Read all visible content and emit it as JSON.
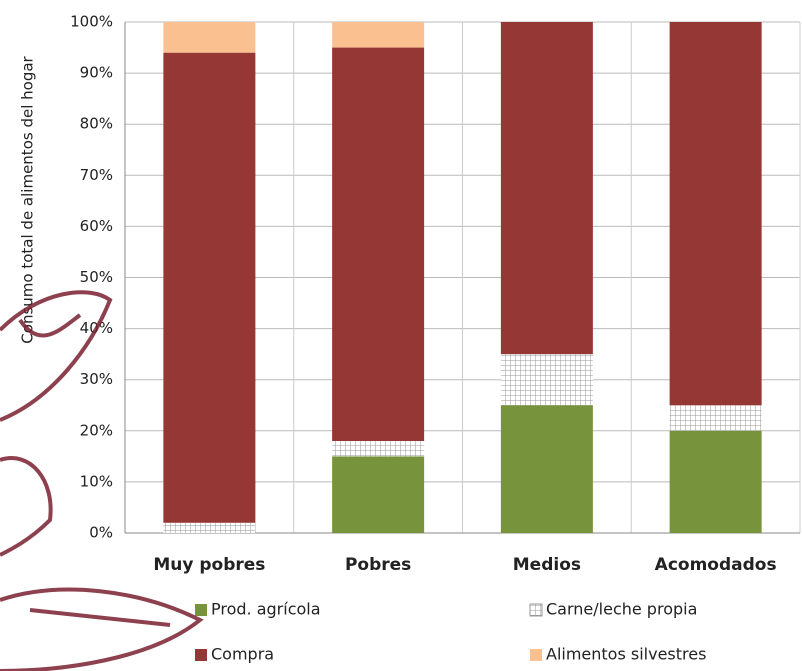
{
  "chart_data": {
    "type": "stacked_bar",
    "y_label": "Consumo total de alimentos del hogar",
    "categories": [
      "Muy pobres",
      "Pobres",
      "Medios",
      "Acomodados"
    ],
    "series": [
      {
        "name": "Prod. agrícola",
        "color": "#77933c",
        "values": [
          0,
          15,
          25,
          20
        ]
      },
      {
        "name": "Carne/leche propia",
        "color": "#ffffff",
        "values": [
          2,
          3,
          10,
          5
        ]
      },
      {
        "name": "Compra",
        "color": "#953735",
        "values": [
          92,
          77,
          65,
          75
        ]
      },
      {
        "name": "Alimentos silvestres",
        "color": "#fac090",
        "values": [
          6,
          5,
          0,
          0
        ]
      }
    ],
    "ylim": [
      0,
      100
    ],
    "yticks": [
      {
        "value": 0,
        "label": "0%"
      },
      {
        "value": 10,
        "label": "10%"
      },
      {
        "value": 20,
        "label": "20%"
      },
      {
        "value": 30,
        "label": "30%"
      },
      {
        "value": 40,
        "label": "40%"
      },
      {
        "value": 50,
        "label": "50%"
      },
      {
        "value": 60,
        "label": "60%"
      },
      {
        "value": 70,
        "label": "70%"
      },
      {
        "value": 80,
        "label": "80%"
      },
      {
        "value": 90,
        "label": "90%"
      },
      {
        "value": 100,
        "label": "100%"
      }
    ],
    "grid": true
  }
}
